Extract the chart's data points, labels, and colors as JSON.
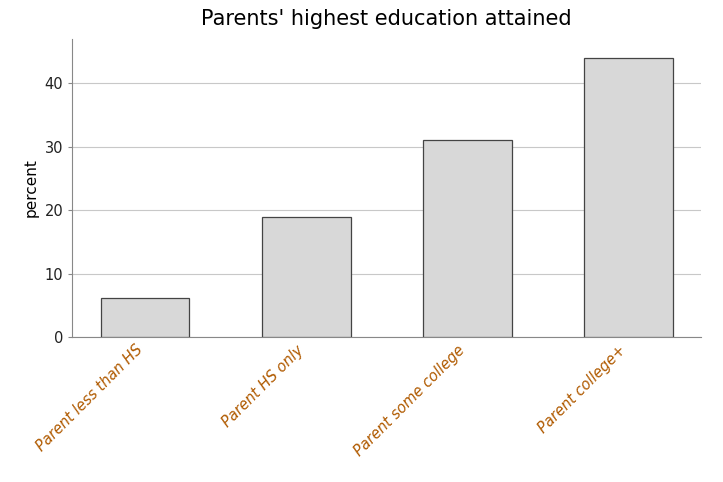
{
  "title": "Parents' highest education attained",
  "categories": [
    "Parent less than HS",
    "Parent HS only",
    "Parent some college",
    "Parent college+"
  ],
  "values": [
    6.2,
    19.0,
    31.0,
    44.0
  ],
  "bar_color": "#d8d8d8",
  "bar_edgecolor": "#444444",
  "ylabel": "percent",
  "ylim": [
    0,
    47
  ],
  "yticks": [
    0,
    10,
    20,
    30,
    40
  ],
  "title_fontsize": 15,
  "ylabel_fontsize": 11,
  "tick_label_fontsize": 10.5,
  "xtick_label_color": "#b05a00",
  "ytick_label_color": "#222222",
  "background_color": "#ffffff",
  "grid_color": "#c8c8c8",
  "bar_width": 0.55
}
